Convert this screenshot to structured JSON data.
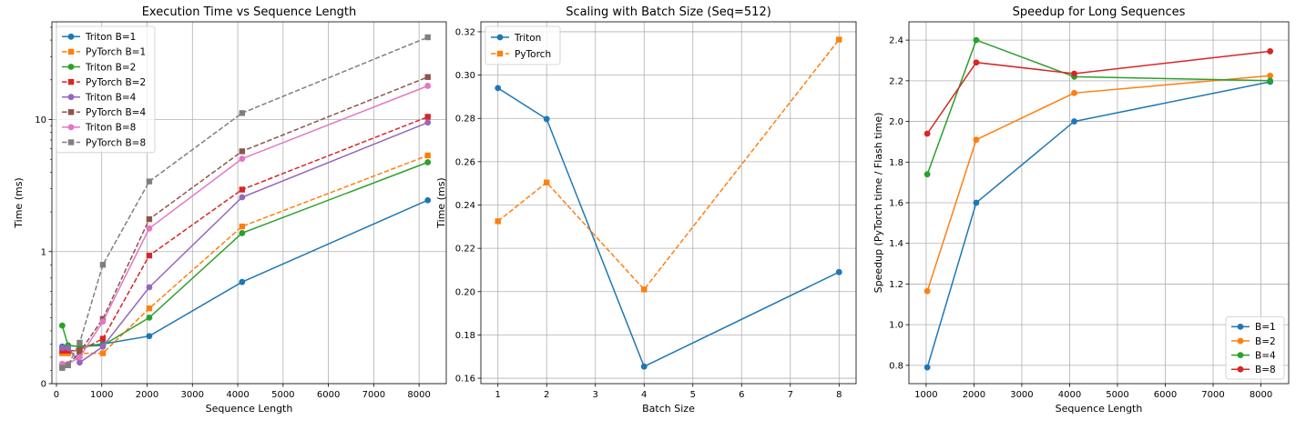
{
  "chart_data": [
    {
      "type": "line",
      "title": "Execution Time vs Sequence Length",
      "xlabel": "Sequence Length",
      "ylabel": "Time (ms)",
      "xlim": [
        -100,
        8600
      ],
      "x_ticks": [
        0,
        1000,
        2000,
        3000,
        4000,
        5000,
        6000,
        7000,
        8000
      ],
      "y_scale": "symlog",
      "ylim": [
        0,
        55
      ],
      "y_ticks": [
        {
          "value": 0,
          "label": "0"
        },
        {
          "value": 1,
          "label": "1"
        },
        {
          "value": 10,
          "label": "10"
        }
      ],
      "grid": true,
      "legend_position": "upper left",
      "series": [
        {
          "name": "Triton B=1",
          "color": "#1f77b4",
          "dashed": false,
          "marker": "circle",
          "x": [
            128,
            256,
            512,
            1024,
            2048,
            4096,
            8192
          ],
          "y": [
            0.28,
            0.29,
            0.28,
            0.3,
            0.36,
            0.77,
            2.45
          ]
        },
        {
          "name": "PyTorch B=1",
          "color": "#ff7f0e",
          "dashed": true,
          "marker": "square",
          "x": [
            128,
            256,
            512,
            1024,
            2048,
            4096,
            8192
          ],
          "y": [
            0.23,
            0.23,
            0.23,
            0.23,
            0.57,
            1.55,
            5.35
          ]
        },
        {
          "name": "Triton B=2",
          "color": "#2ca02c",
          "dashed": false,
          "marker": "circle",
          "x": [
            128,
            256,
            512,
            1024,
            2048,
            4096,
            8192
          ],
          "y": [
            0.44,
            0.29,
            0.28,
            0.29,
            0.5,
            1.38,
            4.75
          ]
        },
        {
          "name": "PyTorch B=2",
          "color": "#d62728",
          "dashed": true,
          "marker": "square",
          "x": [
            128,
            256,
            512,
            1024,
            2048,
            4096,
            8192
          ],
          "y": [
            0.25,
            0.25,
            0.25,
            0.34,
            0.97,
            2.95,
            10.5
          ]
        },
        {
          "name": "Triton B=4",
          "color": "#9467bd",
          "dashed": false,
          "marker": "circle",
          "x": [
            128,
            256,
            512,
            1024,
            2048,
            4096,
            8192
          ],
          "y": [
            0.27,
            0.27,
            0.16,
            0.28,
            0.73,
            2.58,
            9.5
          ]
        },
        {
          "name": "PyTorch B=4",
          "color": "#8c564b",
          "dashed": true,
          "marker": "square",
          "x": [
            128,
            256,
            512,
            1024,
            2048,
            4096,
            8192
          ],
          "y": [
            0.12,
            0.14,
            0.24,
            0.49,
            1.76,
            5.75,
            21.0
          ]
        },
        {
          "name": "Triton B=8",
          "color": "#e377c2",
          "dashed": false,
          "marker": "circle",
          "x": [
            128,
            256,
            512,
            1024,
            2048,
            4096,
            8192
          ],
          "y": [
            0.15,
            0.15,
            0.2,
            0.47,
            1.5,
            5.05,
            18.0
          ]
        },
        {
          "name": "PyTorch B=8",
          "color": "#7f7f7f",
          "dashed": true,
          "marker": "square",
          "x": [
            128,
            256,
            512,
            1024,
            2048,
            4096,
            8192
          ],
          "y": [
            0.12,
            0.14,
            0.31,
            0.9,
            3.4,
            11.2,
            42.0
          ]
        }
      ]
    },
    {
      "type": "line",
      "title": "Scaling with Batch Size (Seq=512)",
      "xlabel": "Batch Size",
      "ylabel": "Time (ms)",
      "xlim": [
        0.65,
        8.35
      ],
      "x_ticks": [
        1,
        2,
        3,
        4,
        5,
        6,
        7,
        8
      ],
      "y_scale": "linear",
      "ylim": [
        0.1575,
        0.3246
      ],
      "y_ticks": [
        {
          "value": 0.16,
          "label": "0.16"
        },
        {
          "value": 0.18,
          "label": "0.18"
        },
        {
          "value": 0.2,
          "label": "0.20"
        },
        {
          "value": 0.22,
          "label": "0.22"
        },
        {
          "value": 0.24,
          "label": "0.24"
        },
        {
          "value": 0.26,
          "label": "0.26"
        },
        {
          "value": 0.28,
          "label": "0.28"
        },
        {
          "value": 0.3,
          "label": "0.30"
        },
        {
          "value": 0.32,
          "label": "0.32"
        }
      ],
      "grid": true,
      "legend_position": "upper left",
      "series": [
        {
          "name": "Triton",
          "color": "#1f77b4",
          "dashed": false,
          "marker": "circle",
          "x": [
            1,
            2,
            4,
            8
          ],
          "y": [
            0.294,
            0.2797,
            0.1654,
            0.209
          ]
        },
        {
          "name": "PyTorch",
          "color": "#ff7f0e",
          "dashed": true,
          "marker": "square",
          "x": [
            1,
            2,
            4,
            8
          ],
          "y": [
            0.2325,
            0.2504,
            0.201,
            0.3164
          ]
        }
      ]
    },
    {
      "type": "line",
      "title": "Speedup for Long Sequences",
      "xlabel": "Sequence Length",
      "ylabel": "Speedup (PyTorch time / Flash time)",
      "xlim": [
        640,
        8580
      ],
      "x_ticks": [
        1000,
        2000,
        3000,
        4000,
        5000,
        6000,
        7000,
        8000
      ],
      "y_scale": "linear",
      "ylim": [
        0.71,
        2.49
      ],
      "y_ticks": [
        {
          "value": 0.8,
          "label": "0.8"
        },
        {
          "value": 1.0,
          "label": "1.0"
        },
        {
          "value": 1.2,
          "label": "1.2"
        },
        {
          "value": 1.4,
          "label": "1.4"
        },
        {
          "value": 1.6,
          "label": "1.6"
        },
        {
          "value": 1.8,
          "label": "1.8"
        },
        {
          "value": 2.0,
          "label": "2.0"
        },
        {
          "value": 2.2,
          "label": "2.2"
        },
        {
          "value": 2.4,
          "label": "2.4"
        }
      ],
      "grid": true,
      "legend_position": "lower right",
      "series": [
        {
          "name": "B=1",
          "color": "#1f77b4",
          "dashed": false,
          "marker": "circle",
          "x": [
            1024,
            2048,
            4096,
            8192
          ],
          "y": [
            0.79,
            1.6,
            2.0,
            2.195
          ]
        },
        {
          "name": "B=2",
          "color": "#ff7f0e",
          "dashed": false,
          "marker": "circle",
          "x": [
            1024,
            2048,
            4096,
            8192
          ],
          "y": [
            1.165,
            1.91,
            2.14,
            2.225
          ]
        },
        {
          "name": "B=4",
          "color": "#2ca02c",
          "dashed": false,
          "marker": "circle",
          "x": [
            1024,
            2048,
            4096,
            8192
          ],
          "y": [
            1.74,
            2.4,
            2.22,
            2.2
          ]
        },
        {
          "name": "B=8",
          "color": "#d62728",
          "dashed": false,
          "marker": "circle",
          "x": [
            1024,
            2048,
            4096,
            8192
          ],
          "y": [
            1.94,
            2.29,
            2.235,
            2.345
          ]
        }
      ]
    }
  ]
}
